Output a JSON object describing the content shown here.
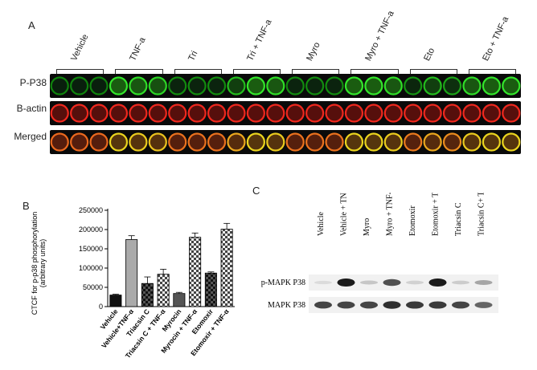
{
  "panelA": {
    "letter": "A",
    "groups": [
      "Vehicle",
      "TNF-a",
      "Tri",
      "Tri + TNF-a",
      "Myro",
      "Myro + TNF-a",
      "Eto",
      "Eto + TNF-a"
    ],
    "rows": [
      {
        "label": "P-P38",
        "stain": "green"
      },
      {
        "label": "B-actin",
        "stain": "red"
      },
      {
        "label": "Merged",
        "stain": "merged"
      }
    ],
    "p38_intensity": [
      0.25,
      0.25,
      0.25,
      0.85,
      0.8,
      0.75,
      0.3,
      0.3,
      0.3,
      0.6,
      0.85,
      0.8,
      0.3,
      0.3,
      0.3,
      0.85,
      0.85,
      0.8,
      0.35,
      0.6,
      0.45,
      0.8,
      0.85,
      0.85
    ]
  },
  "panelB": {
    "letter": "B",
    "chart_data": {
      "type": "bar",
      "ylabel": "CTCF for p-p38 phosphorylation\n(arbitrary units)",
      "ylim": [
        0,
        250000
      ],
      "ticks": [
        "0",
        "50000",
        "100000",
        "150000",
        "200000",
        "250000"
      ],
      "categories": [
        "Vehicle",
        "Vehicle+TNF-α",
        "Triacsin C",
        "Triacsin C + TNF-α",
        "Myrocin",
        "Myrocin + TNF-α",
        "Etomoxir",
        "Etomoxir + TNF-α"
      ],
      "values": [
        30000,
        174000,
        60000,
        84000,
        34000,
        180000,
        87000,
        201000
      ],
      "errors": [
        2000,
        10000,
        17000,
        13000,
        3000,
        11000,
        3000,
        15000
      ],
      "fills": [
        "solid-black",
        "solid-gray",
        "checker-dark",
        "checker-light",
        "solid-darkgray",
        "checker-light",
        "checker-dark",
        "checker-light"
      ]
    }
  },
  "panelC": {
    "letter": "C",
    "lanes": [
      "Vehicle",
      "Vehicle + TNF-α",
      "Myro",
      "Myro + TNF-α",
      "Etomoxir",
      "Etomoxir + TNF-α",
      "Triacsin  C",
      "Triacsin C+ TNF-α"
    ],
    "rows": [
      {
        "label": "p-MAPK P38",
        "intensity": [
          0.05,
          0.95,
          0.15,
          0.7,
          0.1,
          0.95,
          0.12,
          0.3
        ]
      },
      {
        "label": "MAPK P38",
        "intensity": [
          0.75,
          0.75,
          0.75,
          0.85,
          0.8,
          0.8,
          0.75,
          0.6
        ]
      }
    ]
  }
}
